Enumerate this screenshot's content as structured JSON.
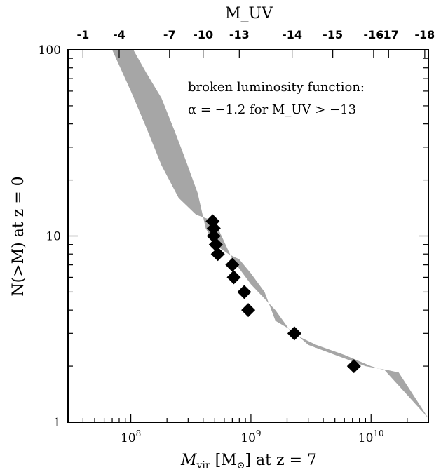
{
  "chart_data": {
    "type": "scatter",
    "x_scale": "log",
    "y_scale": "log",
    "xlim": [
      30000000,
      30000000000
    ],
    "ylim": [
      1,
      100
    ],
    "x_ticks": [
      {
        "value": 100000000,
        "base": "10",
        "exp": "8"
      },
      {
        "value": 1000000000,
        "base": "10",
        "exp": "9"
      },
      {
        "value": 10000000000,
        "base": "10",
        "exp": "10"
      }
    ],
    "y_ticks": [
      {
        "value": 1,
        "label": "1"
      },
      {
        "value": 10,
        "label": "10"
      },
      {
        "value": 100,
        "label": "100"
      }
    ],
    "top_axis": {
      "title": "M_UV",
      "ticks": [
        {
          "x": 40000000,
          "label": "-1"
        },
        {
          "x": 80000000,
          "label": "-4"
        },
        {
          "x": 210000000,
          "label": "-7"
        },
        {
          "x": 400000000,
          "label": "-10"
        },
        {
          "x": 800000000,
          "label": "-13"
        },
        {
          "x": 2200000000,
          "label": "-14"
        },
        {
          "x": 4800000000,
          "label": "-15"
        },
        {
          "x": 10500000000,
          "label": "-16"
        },
        {
          "x": 14000000000,
          "label": "-17"
        },
        {
          "x": 28000000000,
          "label": "-18"
        }
      ]
    },
    "xlabel": {
      "prefix": "M",
      "sub": "vir",
      "rest": " [M",
      "sun": "⊙",
      "suffix": "] at z = 7"
    },
    "ylabel": "N(>M) at z = 0",
    "annotation": {
      "line1": "broken luminosity function:",
      "line2": "α = −1.2 for M_UV > −13"
    },
    "band": {
      "color": "#a6a6a6",
      "upper": [
        [
          37000000,
          100
        ],
        [
          70000000,
          100
        ],
        [
          100000000,
          60
        ],
        [
          135000000,
          38
        ],
        [
          180000000,
          24
        ],
        [
          250000000,
          16
        ],
        [
          350000000,
          13
        ],
        [
          500000000,
          12
        ],
        [
          700000000,
          7.5
        ],
        [
          1000000000,
          5.5
        ],
        [
          1600000000,
          4.0
        ],
        [
          2200000000,
          3.0
        ],
        [
          3500000000,
          2.6
        ],
        [
          6000000000,
          2.3
        ],
        [
          10000000000,
          2.0
        ],
        [
          13000000000,
          1.9
        ],
        [
          30000000000,
          1.05
        ]
      ],
      "lower": [
        [
          45000000,
          100
        ],
        [
          105000000,
          100
        ],
        [
          135000000,
          75
        ],
        [
          180000000,
          55
        ],
        [
          230000000,
          37
        ],
        [
          290000000,
          25
        ],
        [
          360000000,
          17
        ],
        [
          420000000,
          11
        ],
        [
          500000000,
          9.0
        ],
        [
          650000000,
          8.0
        ],
        [
          800000000,
          7.5
        ],
        [
          1000000000,
          6.3
        ],
        [
          1300000000,
          5.0
        ],
        [
          1600000000,
          3.5
        ],
        [
          2200000000,
          3.1
        ],
        [
          3000000000,
          2.6
        ],
        [
          5000000000,
          2.3
        ],
        [
          9000000000,
          2.0
        ],
        [
          14000000000,
          1.9
        ],
        [
          17000000000,
          1.85
        ],
        [
          30000000000,
          1.05
        ]
      ]
    },
    "series": [
      {
        "marker": "diamond",
        "color": "#000000",
        "points": [
          [
            480000000,
            12
          ],
          [
            490000000,
            11
          ],
          [
            490000000,
            10
          ],
          [
            510000000,
            9
          ],
          [
            530000000,
            8
          ],
          [
            700000000,
            7
          ],
          [
            720000000,
            6
          ],
          [
            880000000,
            5
          ],
          [
            950000000,
            4
          ],
          [
            2300000000,
            3
          ],
          [
            7200000000,
            2
          ]
        ]
      }
    ],
    "grid": false
  }
}
